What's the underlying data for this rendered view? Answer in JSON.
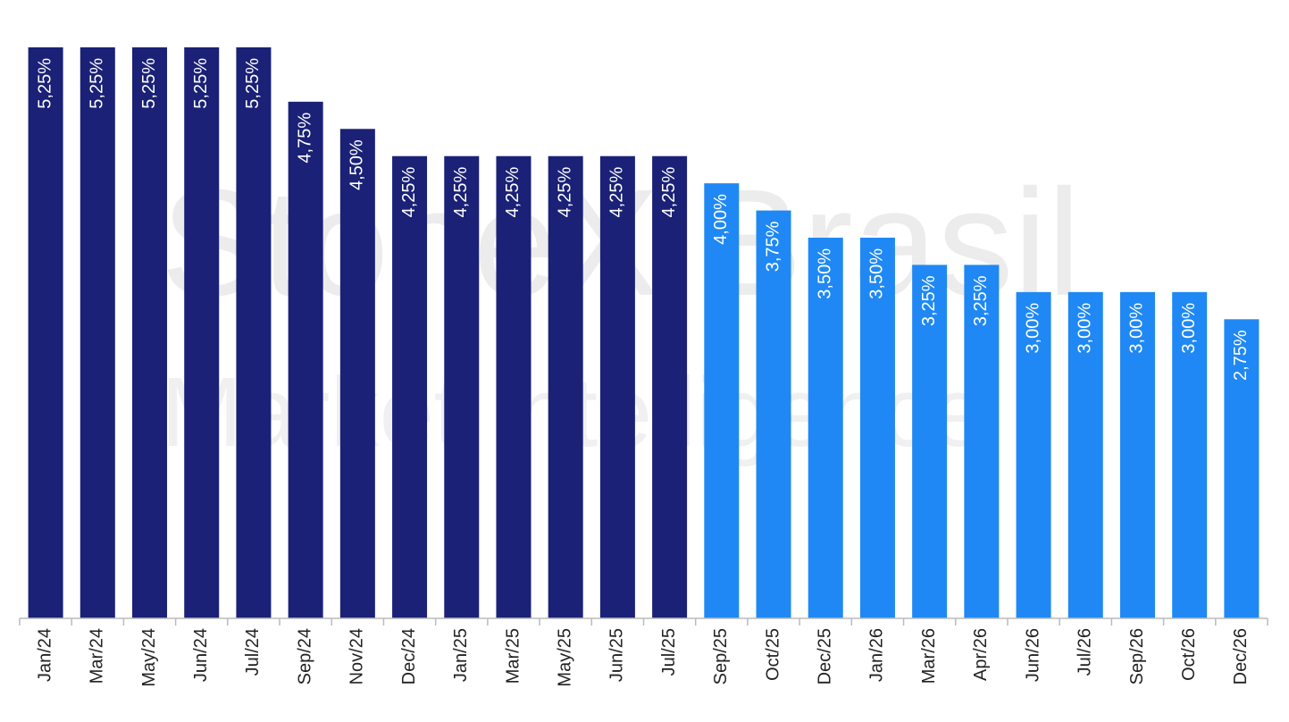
{
  "chart_data": {
    "type": "bar",
    "watermark": [
      "StoneX Brasil",
      "Market Intelligence"
    ],
    "categories": [
      "Jan/24",
      "Mar/24",
      "May/24",
      "Jun/24",
      "Jul/24",
      "Sep/24",
      "Nov/24",
      "Dec/24",
      "Jan/25",
      "Mar/25",
      "May/25",
      "Jun/25",
      "Jul/25",
      "Sep/25",
      "Oct/25",
      "Dec/25",
      "Jan/26",
      "Mar/26",
      "Apr/26",
      "Jun/26",
      "Jul/26",
      "Sep/26",
      "Oct/26",
      "Dec/26"
    ],
    "values": [
      5.25,
      5.25,
      5.25,
      5.25,
      5.25,
      4.75,
      4.5,
      4.25,
      4.25,
      4.25,
      4.25,
      4.25,
      4.25,
      4.0,
      3.75,
      3.5,
      3.5,
      3.25,
      3.25,
      3.0,
      3.0,
      3.0,
      3.0,
      2.75
    ],
    "value_labels": [
      "5,25%",
      "5,25%",
      "5,25%",
      "5,25%",
      "5,25%",
      "4,75%",
      "4,50%",
      "4,25%",
      "4,25%",
      "4,25%",
      "4,25%",
      "4,25%",
      "4,25%",
      "4,00%",
      "3,75%",
      "3,50%",
      "3,50%",
      "3,25%",
      "3,25%",
      "3,00%",
      "3,00%",
      "3,00%",
      "3,00%",
      "2,75%"
    ],
    "colors": [
      "#1a2176",
      "#1a2176",
      "#1a2176",
      "#1a2176",
      "#1a2176",
      "#1a2176",
      "#1a2176",
      "#1a2176",
      "#1a2176",
      "#1a2176",
      "#1a2176",
      "#1a2176",
      "#1a2176",
      "#1f88f4",
      "#1f88f4",
      "#1f88f4",
      "#1f88f4",
      "#1f88f4",
      "#1f88f4",
      "#1f88f4",
      "#1f88f4",
      "#1f88f4",
      "#1f88f4",
      "#1f88f4"
    ],
    "ylim": [
      0,
      5.25
    ]
  }
}
